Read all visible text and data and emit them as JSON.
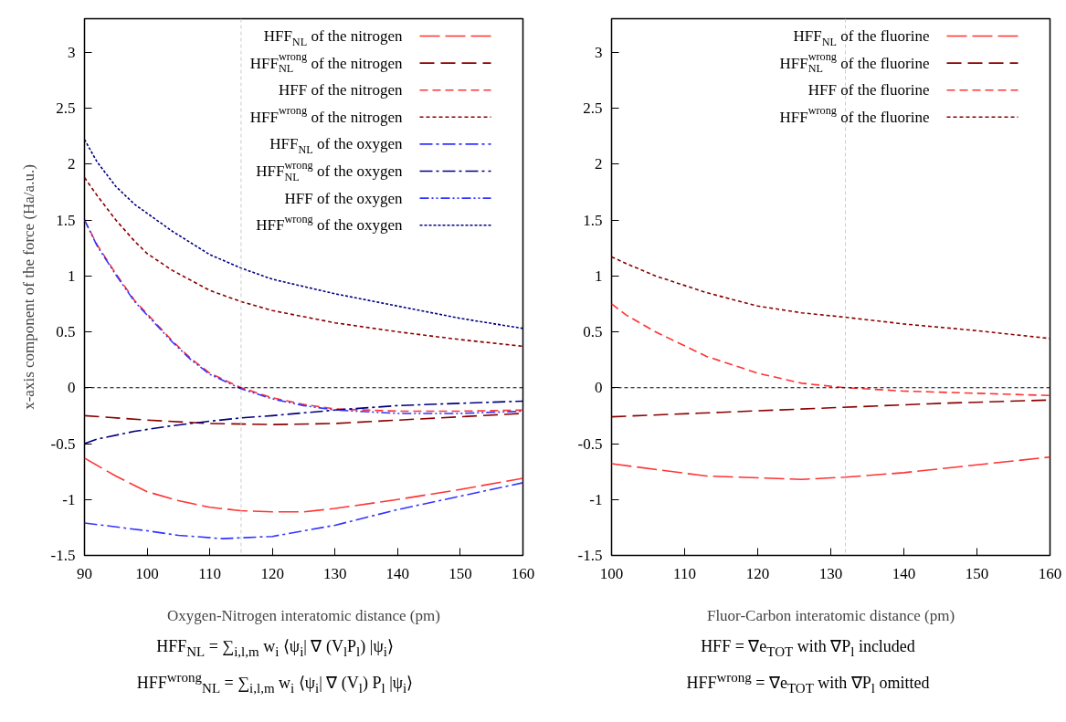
{
  "chart_data": [
    {
      "type": "line",
      "xlabel": "Oxygen-Nitrogen interatomic distance (pm)",
      "ylabel": "x-axis component of the force (Ha/a.u.)",
      "xlim": [
        90,
        160
      ],
      "ylim": [
        -1.5,
        3.3
      ],
      "xticks": [
        90,
        100,
        110,
        120,
        130,
        140,
        150,
        160
      ],
      "yticks": [
        -1.5,
        -1,
        -0.5,
        0,
        0.5,
        1,
        1.5,
        2,
        2.5,
        3
      ],
      "legend": "top right",
      "series": [
        {
          "name": "HFF$_{NL}$ of the nitrogen",
          "color": "#ff3333",
          "line_style": "longdash",
          "x": [
            90,
            95,
            100,
            105,
            110,
            115,
            120,
            125,
            130,
            140,
            150,
            160
          ],
          "values": [
            -0.63,
            -0.79,
            -0.93,
            -1.01,
            -1.07,
            -1.1,
            -1.11,
            -1.11,
            -1.08,
            -1.0,
            -0.91,
            -0.81
          ]
        },
        {
          "name": "HFF$^{wrong}$$_{NL}$ of the nitrogen",
          "color": "#8b0000",
          "line_style": "dashed",
          "x": [
            90,
            100,
            110,
            120,
            130,
            140,
            150,
            160
          ],
          "values": [
            -0.25,
            -0.29,
            -0.32,
            -0.33,
            -0.32,
            -0.29,
            -0.26,
            -0.23
          ]
        },
        {
          "name": "HFF of the nitrogen",
          "color": "#ff3333",
          "line_style": "shortdash",
          "x": [
            90,
            92,
            95,
            98,
            100,
            104,
            107,
            110,
            115,
            120,
            125,
            130,
            140,
            150,
            160
          ],
          "values": [
            1.5,
            1.28,
            1.02,
            0.78,
            0.66,
            0.42,
            0.26,
            0.13,
            0.0,
            -0.09,
            -0.15,
            -0.19,
            -0.21,
            -0.21,
            -0.2
          ]
        },
        {
          "name": "HFF$^{wrong}$ of the nitrogen",
          "color": "#8b0000",
          "line_style": "dotted",
          "x": [
            90,
            92,
            95,
            98,
            100,
            104,
            110,
            115,
            120,
            130,
            140,
            150,
            160
          ],
          "values": [
            1.88,
            1.72,
            1.5,
            1.31,
            1.2,
            1.05,
            0.87,
            0.77,
            0.69,
            0.58,
            0.5,
            0.43,
            0.37
          ]
        },
        {
          "name": "HFF$_{NL}$ of the oxygen",
          "color": "#3333ff",
          "line_style": "dashdot",
          "x": [
            90,
            100,
            105,
            112,
            120,
            130,
            140,
            150,
            160
          ],
          "values": [
            -1.21,
            -1.28,
            -1.32,
            -1.35,
            -1.33,
            -1.23,
            -1.09,
            -0.97,
            -0.85
          ]
        },
        {
          "name": "HFF$^{wrong}$$_{NL}$ of the oxygen",
          "color": "#000080",
          "line_style": "dashdot",
          "x": [
            90,
            92,
            98,
            104,
            110,
            115,
            120,
            130,
            140,
            150,
            160
          ],
          "values": [
            -0.5,
            -0.46,
            -0.39,
            -0.34,
            -0.3,
            -0.27,
            -0.25,
            -0.2,
            -0.16,
            -0.14,
            -0.12
          ]
        },
        {
          "name": "HFF of the oxygen",
          "color": "#3333ff",
          "line_style": "dashdotdot",
          "x": [
            90,
            92,
            95,
            98,
            100,
            104,
            107,
            110,
            115,
            120,
            125,
            130,
            140,
            150,
            160
          ],
          "values": [
            1.5,
            1.27,
            1.01,
            0.77,
            0.65,
            0.41,
            0.25,
            0.12,
            -0.01,
            -0.1,
            -0.16,
            -0.2,
            -0.23,
            -0.23,
            -0.21
          ]
        },
        {
          "name": "HFF$^{wrong}$ of the oxygen",
          "color": "#000080",
          "line_style": "finedash",
          "x": [
            90,
            92,
            95,
            98,
            104,
            110,
            115,
            120,
            130,
            140,
            150,
            160
          ],
          "values": [
            2.22,
            2.02,
            1.8,
            1.64,
            1.4,
            1.19,
            1.07,
            0.97,
            0.84,
            0.73,
            0.62,
            0.53
          ]
        }
      ],
      "ref_lines": [
        {
          "axis": "y",
          "value": 0,
          "color": "#000000",
          "line_style": "dotted"
        },
        {
          "axis": "x",
          "value": 115,
          "color": "#cccccc",
          "line_style": "dotted"
        }
      ],
      "annotations": [
        "HFF$_{NL}$ = ∑$_{i,l,m}$ w$_{i}$ ⟨ψ$_{i}$| ∇ (V$_{l}$P$_{l}$) |ψ$_{i}$⟩",
        "HFF$^{wrong}$$_{NL}$ = ∑$_{i,l,m}$ w$_{i}$ ⟨ψ$_{i}$| ∇ (V$_{l}$) P$_{l}$ |ψ$_{i}$⟩"
      ]
    },
    {
      "type": "line",
      "xlabel": "Fluor-Carbon interatomic distance (pm)",
      "xlim": [
        100,
        160
      ],
      "ylim": [
        -1.5,
        3.3
      ],
      "xticks": [
        100,
        110,
        120,
        130,
        140,
        150,
        160
      ],
      "yticks": [
        -1.5,
        -1,
        -0.5,
        0,
        0.5,
        1,
        1.5,
        2,
        2.5,
        3
      ],
      "legend": "top right",
      "series": [
        {
          "name": "HFF$_{NL}$ of the fluorine",
          "color": "#ff3333",
          "line_style": "longdash",
          "x": [
            100,
            113,
            126,
            132,
            140,
            150,
            160
          ],
          "values": [
            -0.68,
            -0.79,
            -0.82,
            -0.8,
            -0.76,
            -0.69,
            -0.62
          ]
        },
        {
          "name": "HFF$^{wrong}$$_{NL}$ of the fluorine",
          "color": "#8b0000",
          "line_style": "dashed",
          "x": [
            100,
            115,
            130,
            145,
            160
          ],
          "values": [
            -0.26,
            -0.22,
            -0.18,
            -0.14,
            -0.11
          ]
        },
        {
          "name": "HFF of the fluorine",
          "color": "#ff3333",
          "line_style": "shortdash",
          "x": [
            100,
            102,
            106,
            113,
            120,
            126,
            132,
            140,
            150,
            160
          ],
          "values": [
            0.75,
            0.65,
            0.5,
            0.28,
            0.13,
            0.04,
            0.0,
            -0.03,
            -0.05,
            -0.07
          ]
        },
        {
          "name": "HFF$^{wrong}$ of the fluorine",
          "color": "#8b0000",
          "line_style": "dotted",
          "x": [
            100,
            102,
            106,
            113,
            120,
            126,
            132,
            140,
            150,
            160
          ],
          "values": [
            1.17,
            1.11,
            1.0,
            0.85,
            0.73,
            0.67,
            0.63,
            0.57,
            0.51,
            0.44
          ]
        }
      ],
      "ref_lines": [
        {
          "axis": "y",
          "value": 0,
          "color": "#000000",
          "line_style": "dotted"
        },
        {
          "axis": "x",
          "value": 132,
          "color": "#cccccc",
          "line_style": "dotted"
        }
      ],
      "annotations": [
        "HFF = ∇e$_{TOT}$ with ∇P$_{l}$ included",
        "HFF$^{wrong}$ = ∇e$_{TOT}$ with ∇P$_{l}$ omitted"
      ]
    }
  ]
}
